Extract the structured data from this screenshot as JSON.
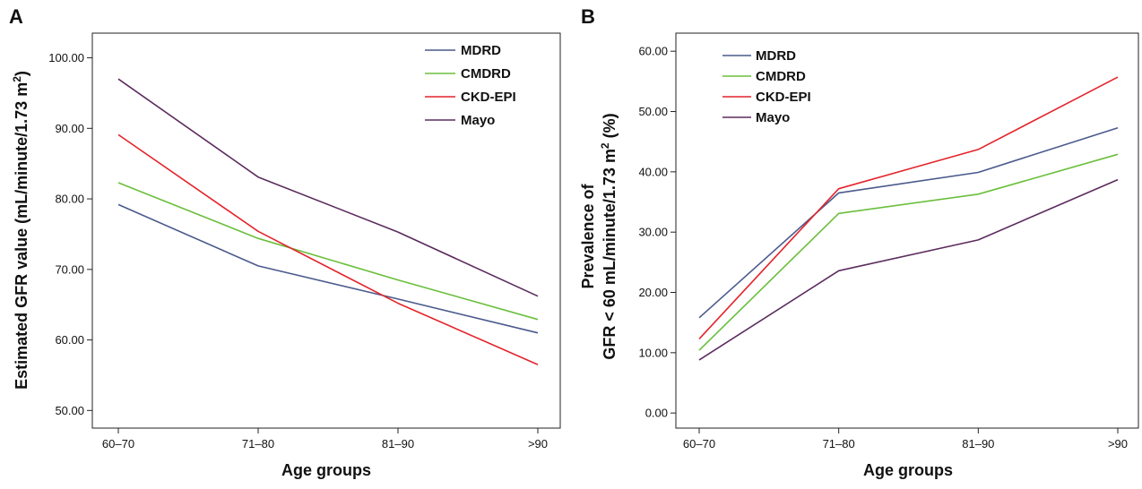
{
  "chart_data": [
    {
      "panel_label": "A",
      "type": "line",
      "categories": [
        "60–70",
        "71–80",
        "81–90",
        ">90"
      ],
      "xlabel": "Age groups",
      "ylabel": "Estimated GFR value (mL/minute/1.73 m²)",
      "ylabel_main": "Estimated GFR value (mL/minute/1.73 m",
      "ylabel_sup": "2",
      "ylabel_end": ")",
      "ylim": [
        47.5,
        103.5
      ],
      "yticks": [
        50,
        60,
        70,
        80,
        90,
        100
      ],
      "ytick_labels": [
        "50.00",
        "60.00",
        "70.00",
        "80.00",
        "90.00",
        "100.00"
      ],
      "legend_position": "top-right",
      "series": [
        {
          "name": "MDRD",
          "color": "#4a5a8c",
          "values": [
            79.2,
            70.5,
            65.8,
            61.0
          ]
        },
        {
          "name": "CMDRD",
          "color": "#6abf3c",
          "values": [
            82.3,
            74.4,
            68.5,
            62.9
          ]
        },
        {
          "name": "CKD-EPI",
          "color": "#e3242b",
          "values": [
            89.1,
            75.4,
            65.2,
            56.5
          ]
        },
        {
          "name": "Mayo",
          "color": "#5b2c5e",
          "values": [
            97.0,
            83.1,
            75.3,
            66.2
          ]
        }
      ]
    },
    {
      "panel_label": "B",
      "type": "line",
      "categories": [
        "60–70",
        "71–80",
        "81–90",
        ">90"
      ],
      "xlabel": "Age groups",
      "ylabel_line1": "Prevalence of",
      "ylabel_line2_main": "GFR < 60 mL/minute/1.73 m",
      "ylabel_line2_sup": "2",
      "ylabel_line2_end": " (%)",
      "ylim": [
        -2.5,
        63.0
      ],
      "yticks": [
        0,
        10,
        20,
        30,
        40,
        50,
        60
      ],
      "ytick_labels": [
        "0.00",
        "10.00",
        "20.00",
        "30.00",
        "40.00",
        "50.00",
        "60.00"
      ],
      "legend_position": "top-left",
      "series": [
        {
          "name": "MDRD",
          "color": "#4a5a8c",
          "values": [
            15.8,
            36.5,
            39.9,
            47.3
          ]
        },
        {
          "name": "CMDRD",
          "color": "#6abf3c",
          "values": [
            10.4,
            33.1,
            36.3,
            42.9
          ]
        },
        {
          "name": "CKD-EPI",
          "color": "#e3242b",
          "values": [
            12.3,
            37.2,
            43.7,
            55.7
          ]
        },
        {
          "name": "Mayo",
          "color": "#5b2c5e",
          "values": [
            8.8,
            23.6,
            28.7,
            38.7
          ]
        }
      ]
    }
  ]
}
